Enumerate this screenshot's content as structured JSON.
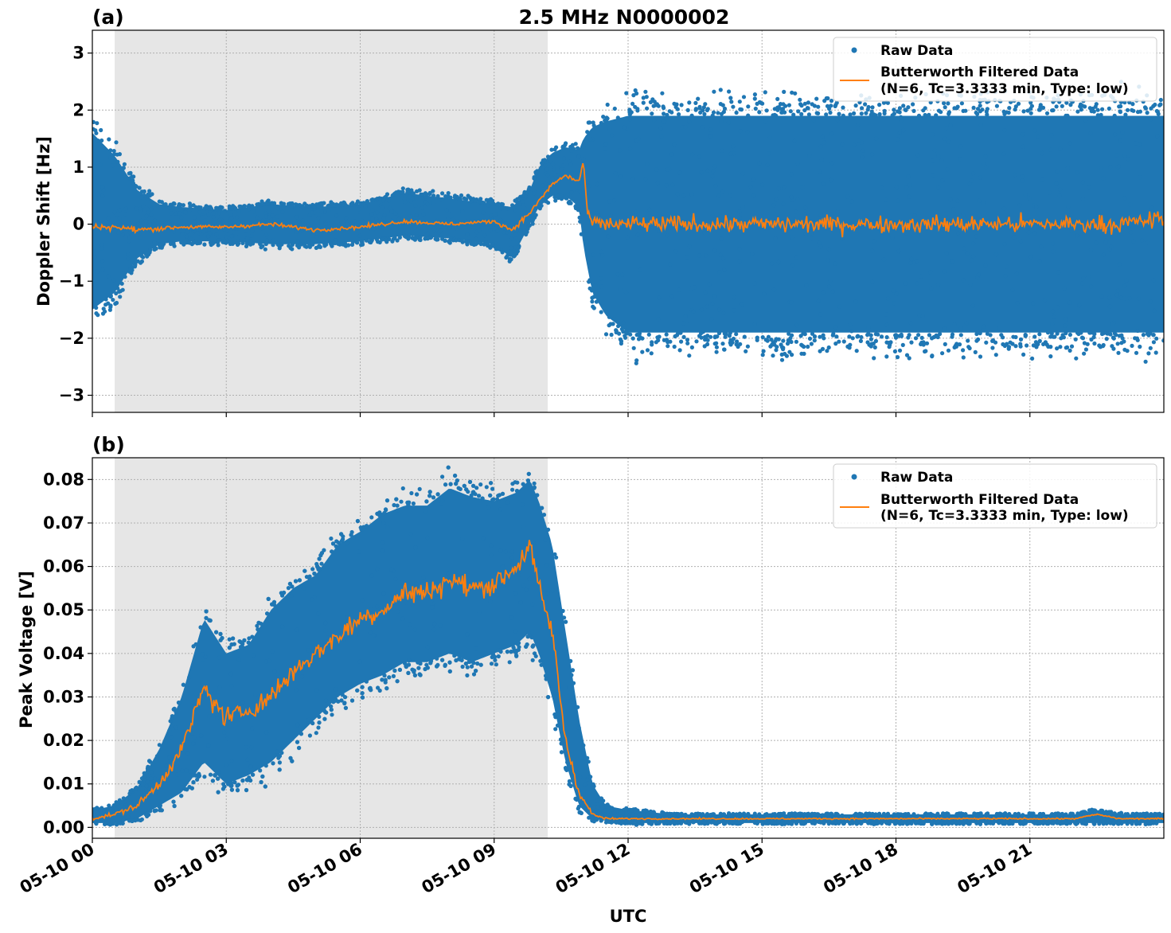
{
  "figure": {
    "title": "2.5 MHz N0000002",
    "xlabel": "UTC",
    "colors": {
      "raw": "#1f77b4",
      "filtered": "#ff7f0e",
      "shade": "#e6e6e6"
    }
  },
  "chart_data": [
    {
      "type": "scatter",
      "panel_label": "(a)",
      "ylabel": "Doppler Shift [Hz]",
      "xlim": [
        0,
        24
      ],
      "ylim": [
        -3.3,
        3.4
      ],
      "yticks": [
        3,
        2,
        1,
        0,
        -1,
        -2,
        -3
      ],
      "ytick_labels": [
        "3",
        "2",
        "1",
        "0",
        "−1",
        "−2",
        "−3"
      ],
      "xtick_labels": [
        "05-10 00",
        "05-10 03",
        "05-10 06",
        "05-10 09",
        "05-10 12",
        "05-10 15",
        "05-10 18",
        "05-10 21"
      ],
      "xticks": [
        0,
        3,
        6,
        9,
        12,
        15,
        18,
        21
      ],
      "grid": true,
      "shaded_region": [
        0.5,
        10.2
      ],
      "legend": {
        "placement": "top-right",
        "entries": [
          "Raw Data",
          "Butterworth Filtered Data",
          "(N=6, Tc=3.3333 min, Type: low)"
        ]
      },
      "series": [
        {
          "name": "Raw Data",
          "kind": "envelope",
          "x": [
            0,
            0.5,
            1,
            1.5,
            2,
            3,
            4,
            5,
            6,
            7,
            8,
            9,
            9.4,
            9.8,
            10,
            10.3,
            10.6,
            10.9,
            11,
            11.2,
            11.5,
            12,
            13,
            14,
            15,
            16,
            17,
            18,
            19,
            20,
            21,
            22,
            23,
            24
          ],
          "upper": [
            1.6,
            1.2,
            0.6,
            0.35,
            0.3,
            0.25,
            0.35,
            0.3,
            0.35,
            0.55,
            0.45,
            0.35,
            0.3,
            0.6,
            1.0,
            1.25,
            1.35,
            1.3,
            1.5,
            1.7,
            1.8,
            1.9,
            1.9,
            1.9,
            1.9,
            1.9,
            1.9,
            1.9,
            1.9,
            1.9,
            1.9,
            1.9,
            1.9,
            1.9
          ],
          "lower": [
            -1.5,
            -1.2,
            -0.6,
            -0.35,
            -0.3,
            -0.3,
            -0.35,
            -0.35,
            -0.3,
            -0.2,
            -0.25,
            -0.35,
            -0.6,
            0.0,
            0.3,
            0.5,
            0.5,
            0.3,
            -0.4,
            -1.2,
            -1.6,
            -1.9,
            -1.9,
            -1.9,
            -1.9,
            -1.9,
            -1.9,
            -1.9,
            -1.9,
            -1.9,
            -1.9,
            -1.9,
            -1.9,
            -1.9
          ]
        },
        {
          "name": "Butterworth Filtered Data",
          "kind": "line",
          "x": [
            0,
            0.5,
            1,
            2,
            3,
            4,
            5,
            6,
            7,
            8,
            9,
            9.4,
            9.8,
            10,
            10.3,
            10.6,
            10.9,
            11,
            11.1,
            11.3,
            12,
            13,
            14,
            15,
            16,
            17,
            18,
            19,
            20,
            21,
            22,
            23,
            24
          ],
          "y": [
            -0.05,
            -0.05,
            -0.1,
            -0.05,
            -0.05,
            0.0,
            -0.1,
            -0.05,
            0.05,
            0.0,
            0.05,
            -0.1,
            0.2,
            0.4,
            0.7,
            0.85,
            0.75,
            1.1,
            0.1,
            0.0,
            0.0,
            0.0,
            0.0,
            0.0,
            0.0,
            0.0,
            0.0,
            0.0,
            0.0,
            0.0,
            0.0,
            0.0,
            0.1
          ],
          "noise": [
            0.06,
            0.06,
            0.06,
            0.04,
            0.04,
            0.04,
            0.04,
            0.04,
            0.04,
            0.04,
            0.04,
            0.05,
            0.05,
            0.05,
            0.05,
            0.05,
            0.05,
            0.05,
            0.1,
            0.15,
            0.18,
            0.18,
            0.18,
            0.18,
            0.18,
            0.18,
            0.18,
            0.18,
            0.18,
            0.18,
            0.18,
            0.18,
            0.18
          ]
        }
      ]
    },
    {
      "type": "scatter",
      "panel_label": "(b)",
      "ylabel": "Peak Voltage [V]",
      "xlim": [
        0,
        24
      ],
      "ylim": [
        -0.0025,
        0.085
      ],
      "yticks": [
        0.08,
        0.07,
        0.06,
        0.05,
        0.04,
        0.03,
        0.02,
        0.01,
        0.0
      ],
      "ytick_labels": [
        "0.08",
        "0.07",
        "0.06",
        "0.05",
        "0.04",
        "0.03",
        "0.02",
        "0.01",
        "0.00"
      ],
      "xtick_labels": [
        "05-10 00",
        "05-10 03",
        "05-10 06",
        "05-10 09",
        "05-10 12",
        "05-10 15",
        "05-10 18",
        "05-10 21"
      ],
      "xticks": [
        0,
        3,
        6,
        9,
        12,
        15,
        18,
        21
      ],
      "grid": true,
      "shaded_region": [
        0.5,
        10.2
      ],
      "legend": {
        "placement": "top-right",
        "entries": [
          "Raw Data",
          "Butterworth Filtered Data",
          "(N=6, Tc=3.3333 min, Type: low)"
        ]
      },
      "series": [
        {
          "name": "Raw Data",
          "kind": "envelope",
          "x": [
            0,
            0.5,
            1,
            1.5,
            2,
            2.5,
            3,
            3.5,
            4,
            4.5,
            5,
            5.5,
            6,
            6.5,
            7,
            7.5,
            8,
            8.5,
            9,
            9.5,
            9.8,
            10,
            10.3,
            10.6,
            10.9,
            11.2,
            11.5,
            12,
            13,
            14,
            15,
            16,
            17,
            18,
            19,
            20,
            21,
            22,
            22.5,
            23,
            24
          ],
          "upper": [
            0.004,
            0.005,
            0.009,
            0.018,
            0.03,
            0.048,
            0.04,
            0.042,
            0.05,
            0.055,
            0.058,
            0.065,
            0.068,
            0.072,
            0.074,
            0.074,
            0.078,
            0.076,
            0.075,
            0.077,
            0.08,
            0.075,
            0.065,
            0.045,
            0.025,
            0.01,
            0.005,
            0.004,
            0.003,
            0.003,
            0.003,
            0.003,
            0.003,
            0.003,
            0.003,
            0.003,
            0.003,
            0.003,
            0.004,
            0.003,
            0.003
          ],
          "lower": [
            0.001,
            0.001,
            0.002,
            0.005,
            0.008,
            0.015,
            0.01,
            0.012,
            0.015,
            0.02,
            0.025,
            0.03,
            0.033,
            0.035,
            0.038,
            0.038,
            0.04,
            0.038,
            0.04,
            0.042,
            0.045,
            0.04,
            0.03,
            0.015,
            0.005,
            0.002,
            0.0015,
            0.001,
            0.001,
            0.001,
            0.001,
            0.001,
            0.001,
            0.001,
            0.001,
            0.001,
            0.001,
            0.001,
            0.001,
            0.001,
            0.001
          ]
        },
        {
          "name": "Butterworth Filtered Data",
          "kind": "line",
          "x": [
            0,
            0.5,
            1,
            1.5,
            2,
            2.5,
            3,
            3.5,
            4,
            4.5,
            5,
            5.5,
            6,
            6.5,
            7,
            7.5,
            8,
            8.5,
            9,
            9.5,
            9.8,
            10,
            10.3,
            10.6,
            10.9,
            11.2,
            11.5,
            12,
            13,
            14,
            15,
            16,
            17,
            18,
            19,
            20,
            21,
            22,
            22.5,
            23,
            24
          ],
          "y": [
            0.002,
            0.003,
            0.005,
            0.01,
            0.018,
            0.032,
            0.025,
            0.027,
            0.03,
            0.036,
            0.04,
            0.044,
            0.048,
            0.05,
            0.054,
            0.054,
            0.057,
            0.055,
            0.056,
            0.06,
            0.065,
            0.055,
            0.045,
            0.02,
            0.008,
            0.003,
            0.002,
            0.002,
            0.002,
            0.002,
            0.002,
            0.002,
            0.002,
            0.002,
            0.002,
            0.002,
            0.002,
            0.002,
            0.003,
            0.002,
            0.002
          ],
          "noise": [
            0.0005,
            0.0005,
            0.001,
            0.0015,
            0.002,
            0.003,
            0.003,
            0.003,
            0.003,
            0.003,
            0.003,
            0.003,
            0.003,
            0.003,
            0.003,
            0.003,
            0.003,
            0.003,
            0.003,
            0.003,
            0.003,
            0.003,
            0.003,
            0.002,
            0.001,
            0.0005,
            0.0003,
            0.0002,
            0.0002,
            0.0002,
            0.0002,
            0.0002,
            0.0002,
            0.0002,
            0.0002,
            0.0002,
            0.0002,
            0.0002,
            0.0002,
            0.0002,
            0.0002
          ]
        }
      ]
    }
  ]
}
